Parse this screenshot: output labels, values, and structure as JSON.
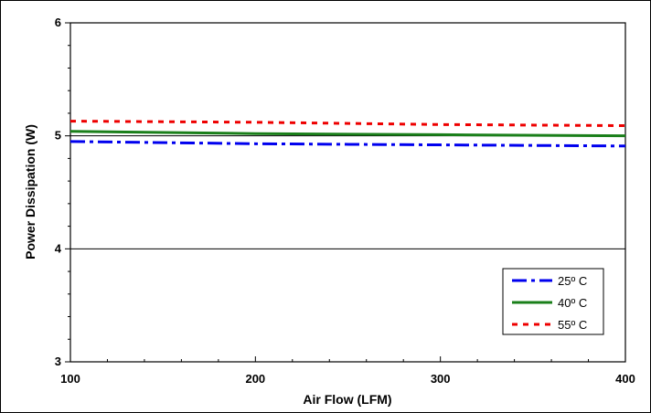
{
  "chart_data": {
    "type": "line",
    "title": "",
    "xlabel": "Air Flow (LFM)",
    "ylabel": "Power Dissipation (W)",
    "xlim": [
      100,
      400
    ],
    "ylim": [
      3,
      6
    ],
    "x_ticks": [
      100,
      200,
      300,
      400
    ],
    "y_ticks": [
      3,
      4,
      5,
      6
    ],
    "grid": "horizontal major lines",
    "legend_position": "bottom-right",
    "series": [
      {
        "name": "25º C",
        "color": "#0000ee",
        "dash": "dash-dot",
        "x": [
          100,
          200,
          300,
          400
        ],
        "values": [
          4.95,
          4.93,
          4.92,
          4.91
        ]
      },
      {
        "name": "40º C",
        "color": "#1a7f1a",
        "dash": "solid",
        "x": [
          100,
          200,
          300,
          400
        ],
        "values": [
          5.04,
          5.02,
          5.01,
          5.0
        ]
      },
      {
        "name": "55º C",
        "color": "#ee0000",
        "dash": "dotted",
        "x": [
          100,
          200,
          300,
          400
        ],
        "values": [
          5.13,
          5.12,
          5.1,
          5.09
        ]
      }
    ]
  }
}
